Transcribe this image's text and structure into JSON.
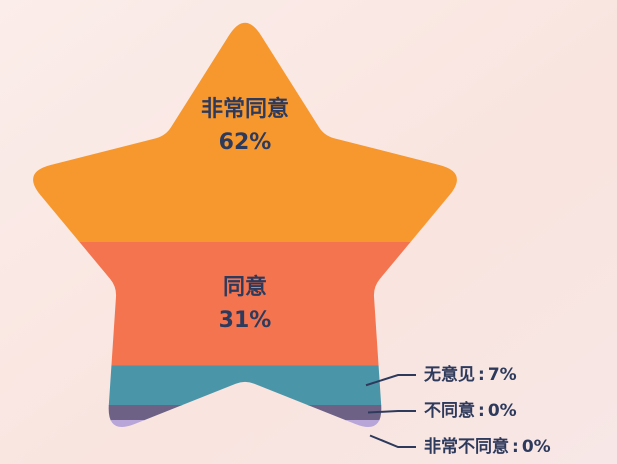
{
  "chart_data": {
    "type": "star",
    "categories": [
      "非常同意",
      "同意",
      "无意见",
      "不同意",
      "非常不同意"
    ],
    "values": [
      62,
      31,
      7,
      0,
      0
    ],
    "value_labels": [
      "62%",
      "31%",
      "7%",
      "0%",
      "0%"
    ],
    "label_separator": ":",
    "colors": [
      "#F7982F",
      "#F3744F",
      "#4B95A8",
      "#6D6286",
      "#B9A6D8"
    ]
  }
}
